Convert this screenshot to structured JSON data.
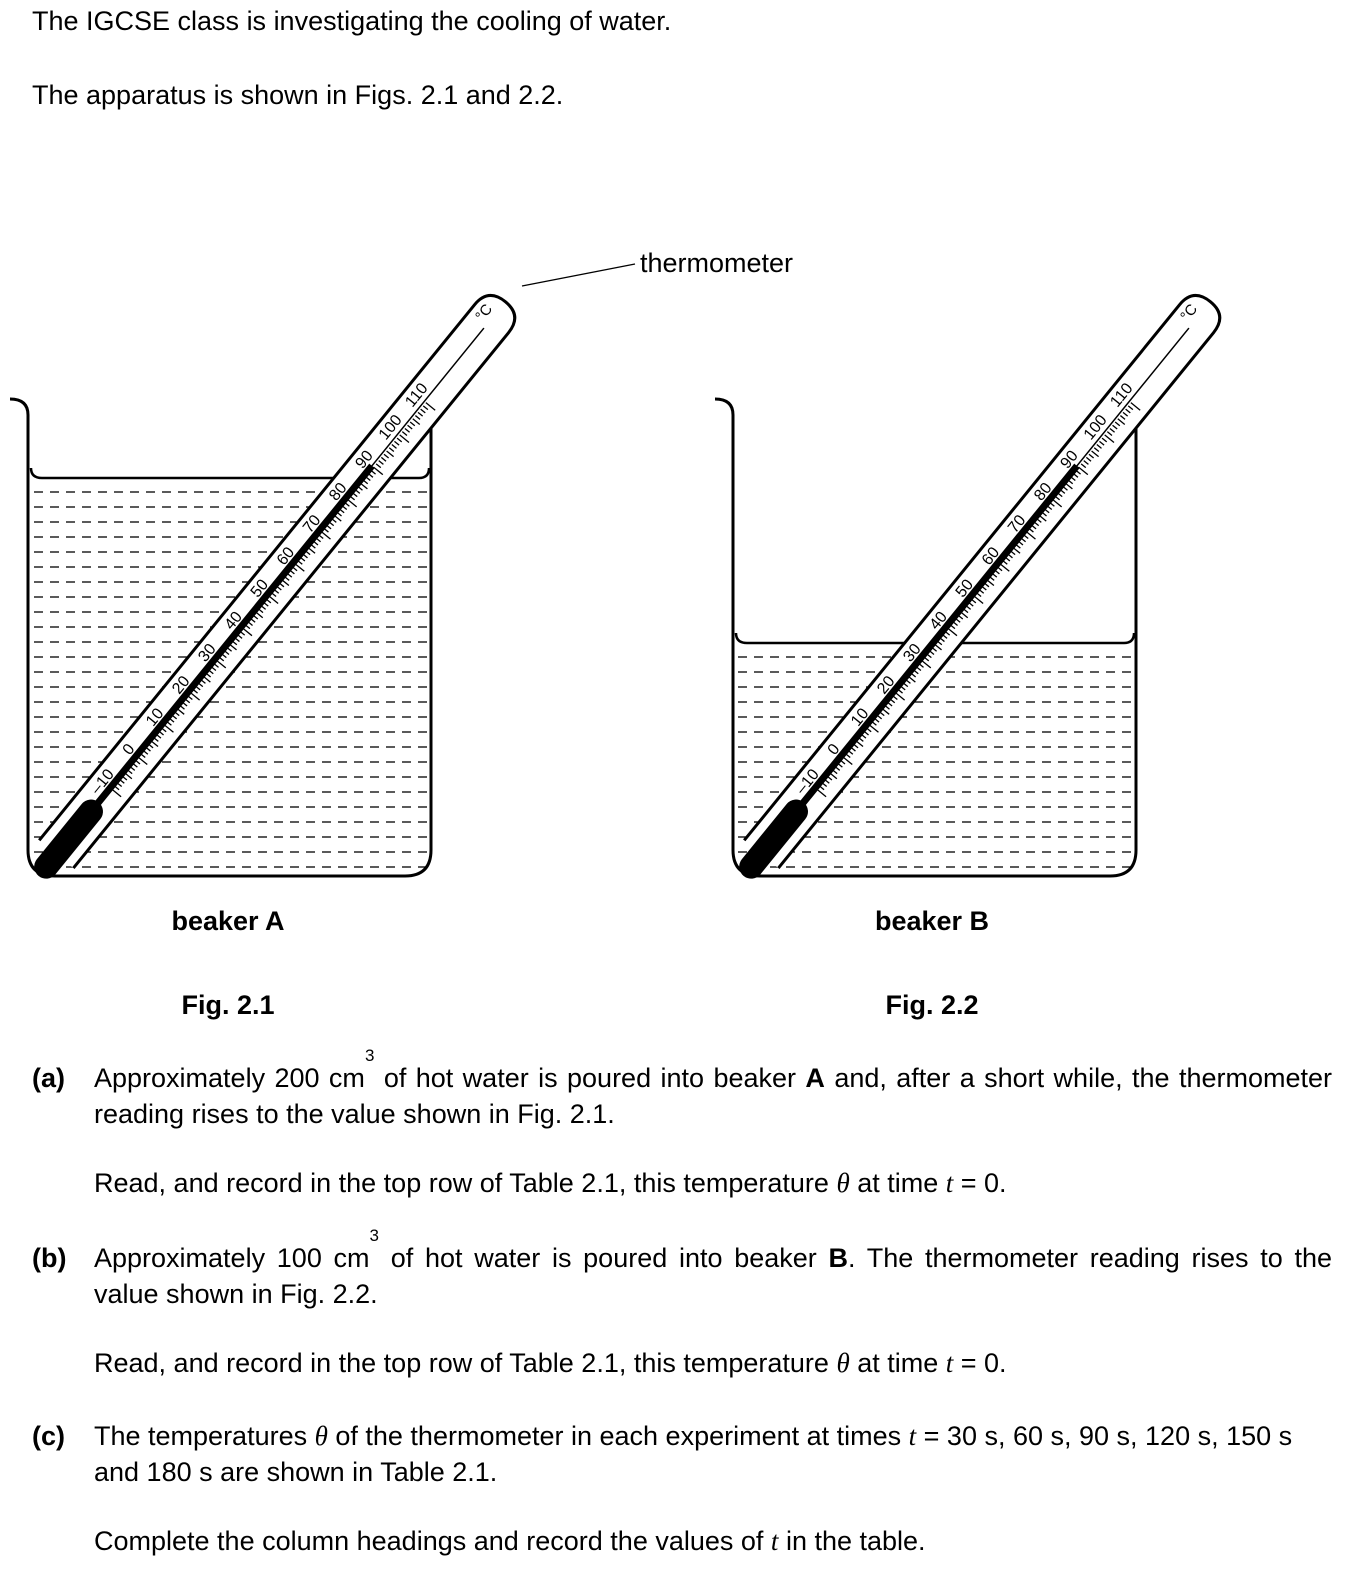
{
  "intro": {
    "line1": "The IGCSE class is investigating the cooling of water.",
    "line2": "The apparatus is shown in Figs. 2.1 and 2.2."
  },
  "figure": {
    "thermometer_label": "thermometer",
    "beaker_a_label": "beaker A",
    "beaker_b_label": "beaker B",
    "fig1_caption": "Fig. 2.1",
    "fig2_caption": "Fig. 2.2",
    "scale_labels": [
      "–10",
      "0",
      "10",
      "20",
      "30",
      "40",
      "50",
      "60",
      "70",
      "80",
      "90",
      "100",
      "110"
    ],
    "scale_unit": "°C",
    "reading_a": 90,
    "reading_b": 90
  },
  "questions": {
    "a": {
      "label": "(a)",
      "t1": "Approximately 200 cm",
      "sup": "3",
      "t2": " of hot water is poured into beaker ",
      "bold": "A",
      "t3": " and, after a short while, the thermometer reading rises to the value shown in Fig. 2.1.",
      "instr_1": "Read, and record in the top row of Table 2.1, this temperature ",
      "theta": "θ",
      "instr_2": " at time ",
      "t_sym": "t",
      "instr_3": " = 0."
    },
    "b": {
      "label": "(b)",
      "t1": "Approximately 100 cm",
      "sup": "3",
      "t2": " of hot water is poured into beaker ",
      "bold": "B",
      "t3": ". The thermometer reading rises to the value shown in Fig. 2.2.",
      "instr_1": "Read, and record in the top row of Table 2.1, this temperature ",
      "theta": "θ",
      "instr_2": " at time ",
      "t_sym": "t",
      "instr_3": " = 0."
    },
    "c": {
      "label": "(c)",
      "t1": "The temperatures ",
      "theta": "θ",
      "t2": " of the thermometer in each experiment at times ",
      "t_sym": "t",
      "t3": " = 30 s, 60 s, 90 s, 120 s, 150 s and 180 s are shown in Table 2.1.",
      "instr_1": "Complete the column headings and record the values of ",
      "instr_t": "t",
      "instr_2": " in the table."
    }
  }
}
